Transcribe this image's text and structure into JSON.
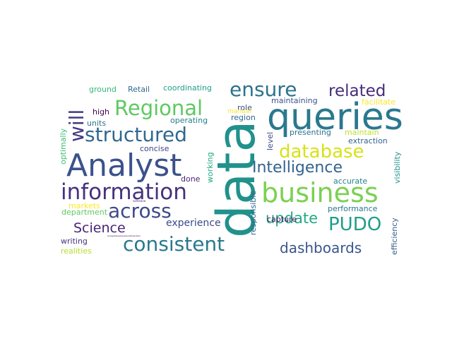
{
  "wordcloud": {
    "words": [
      {
        "text": "data",
        "color": "#21918c"
      },
      {
        "text": "queries",
        "color": "#2a788e"
      },
      {
        "text": "Analyst",
        "color": "#3b528b"
      },
      {
        "text": "business",
        "color": "#7ad151"
      },
      {
        "text": "information",
        "color": "#46327e"
      },
      {
        "text": "structured",
        "color": "#31688e"
      },
      {
        "text": "database",
        "color": "#d8e219"
      },
      {
        "text": "Regional",
        "color": "#5ec962"
      },
      {
        "text": "ensure",
        "color": "#2c728e"
      },
      {
        "text": "related",
        "color": "#472d7b"
      },
      {
        "text": "across",
        "color": "#3e4989"
      },
      {
        "text": "consistent",
        "color": "#2a788e"
      },
      {
        "text": "Intelligence",
        "color": "#33638d"
      },
      {
        "text": "will",
        "color": "#453882"
      },
      {
        "text": "PUDO",
        "color": "#1f9e89"
      },
      {
        "text": "update",
        "color": "#22a884"
      },
      {
        "text": "dashboards",
        "color": "#39568c"
      },
      {
        "text": "Science",
        "color": "#482576"
      },
      {
        "text": "experience",
        "color": "#3e4a89"
      },
      {
        "text": "ground",
        "color": "#35b779"
      },
      {
        "text": "Retail",
        "color": "#31688e"
      },
      {
        "text": "coordinating",
        "color": "#1f9e89"
      },
      {
        "text": "maintaining",
        "color": "#3b528b"
      },
      {
        "text": "high",
        "color": "#440154"
      },
      {
        "text": "units",
        "color": "#2c728e"
      },
      {
        "text": "optimally",
        "color": "#3dbc74"
      },
      {
        "text": "concise",
        "color": "#414487"
      },
      {
        "text": "operating",
        "color": "#277f8e"
      },
      {
        "text": "working",
        "color": "#22a884"
      },
      {
        "text": "done",
        "color": "#481f70"
      },
      {
        "text": "markets",
        "color": "#fde725"
      },
      {
        "text": "department",
        "color": "#5ec962"
      },
      {
        "text": "writing",
        "color": "#46327e"
      },
      {
        "text": "realities",
        "color": "#b5de2b"
      },
      {
        "text": "role",
        "color": "#3e4989"
      },
      {
        "text": "region",
        "color": "#31688e"
      },
      {
        "text": "manual",
        "color": "#fde725"
      },
      {
        "text": "facilitate",
        "color": "#fde725"
      },
      {
        "text": "presenting",
        "color": "#2c728e"
      },
      {
        "text": "maintain",
        "color": "#bddf26"
      },
      {
        "text": "extraction",
        "color": "#33638d"
      },
      {
        "text": "level",
        "color": "#3e4a89"
      },
      {
        "text": "visibility",
        "color": "#21918c"
      },
      {
        "text": "responsible",
        "color": "#31688e"
      },
      {
        "text": "capture",
        "color": "#471063"
      },
      {
        "text": "accurate",
        "color": "#26828e"
      },
      {
        "text": "performance",
        "color": "#2a788e"
      },
      {
        "text": "efficiency",
        "color": "#365c8d"
      },
      {
        "text": "someone",
        "color": "#482071"
      },
      {
        "text": "Analystdeveloperbuildmaintain",
        "color": "#440154"
      }
    ]
  }
}
